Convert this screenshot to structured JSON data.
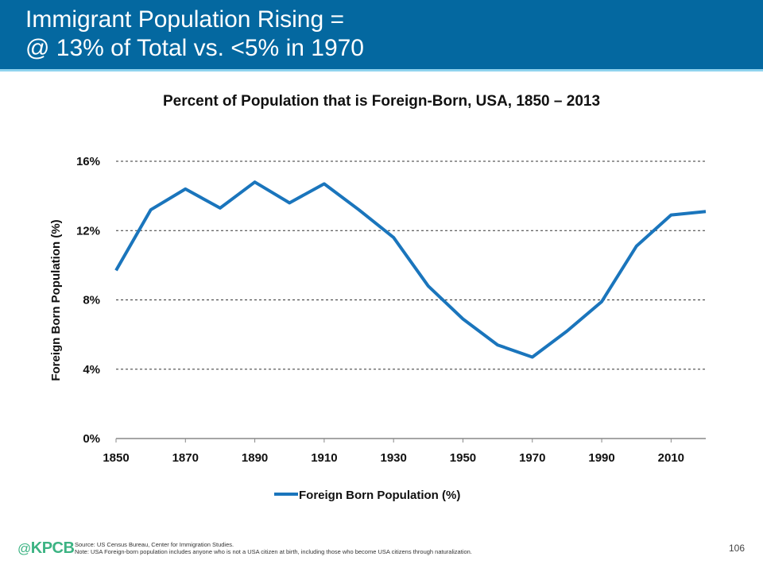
{
  "header": {
    "title_line1": "Immigrant Population Rising =",
    "title_line2": "@ 13% of Total vs. <5% in 1970"
  },
  "chart_data": {
    "type": "line",
    "title": "Percent of Population that is Foreign-Born, USA, 1850 – 2013",
    "xlabel": "",
    "ylabel": "Foreign Born Population (%)",
    "x": [
      1850,
      1860,
      1870,
      1880,
      1890,
      1900,
      1910,
      1920,
      1930,
      1940,
      1950,
      1960,
      1970,
      1980,
      1990,
      2000,
      2010,
      2013
    ],
    "series": [
      {
        "name": "Foreign Born Population (%)",
        "color": "#1a75bc",
        "values": [
          9.7,
          13.2,
          14.4,
          13.3,
          14.8,
          13.6,
          14.7,
          13.2,
          11.6,
          8.8,
          6.9,
          5.4,
          4.7,
          6.2,
          7.9,
          11.1,
          12.9,
          13.1
        ]
      }
    ],
    "ylim": [
      0,
      16
    ],
    "yticks": [
      0,
      4,
      8,
      12,
      16
    ],
    "ytick_labels": [
      "0%",
      "4%",
      "8%",
      "12%",
      "16%"
    ],
    "xticks": [
      1850,
      1870,
      1890,
      1910,
      1930,
      1950,
      1970,
      1990,
      2010
    ],
    "xtick_labels": [
      "1850",
      "1870",
      "1890",
      "1910",
      "1930",
      "1950",
      "1970",
      "1990",
      "2010"
    ],
    "xlim": [
      1850,
      2020
    ],
    "grid": "horizontal-dashed",
    "legend": {
      "position": "bottom-center",
      "entries": [
        "Foreign Born Population (%)"
      ]
    }
  },
  "footer": {
    "logo_at": "@",
    "logo_text": "KPCB",
    "source": "Source: US Census Bureau, Center for Immigration Studies.",
    "note": "Note: USA Foreign-born population includes anyone who is not a USA citizen at birth, including those who become USA citizens through naturalization.",
    "page_number": "106"
  }
}
